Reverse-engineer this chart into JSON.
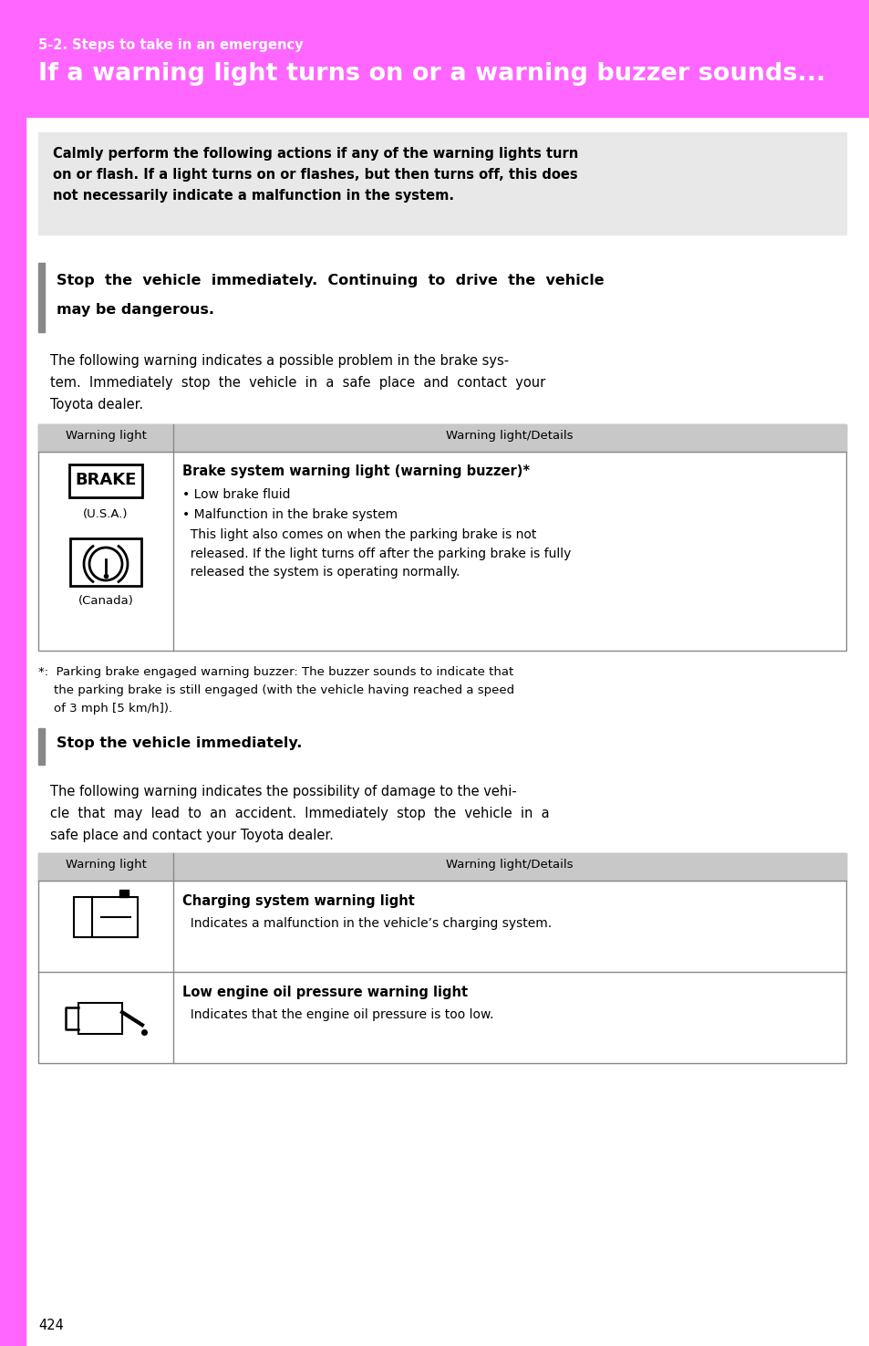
{
  "page_bg": "#ffffff",
  "pink_bg": "#ff66ff",
  "header_subtitle": "5-2. Steps to take in an emergency",
  "header_title": "If a warning light turns on or a warning buzzer sounds...",
  "header_text_color": "#ffffff",
  "gray_box_color": "#e8e8e8",
  "gray_box_text": "Calmly perform the following actions if any of the warning lights turn\non or flash. If a light turns on or flashes, but then turns off, this does\nnot necessarily indicate a malfunction in the system.",
  "stop_box1_text_line1": "Stop  the  vehicle  immediately.  Continuing  to  drive  the  vehicle",
  "stop_box1_text_line2": "may be dangerous.",
  "body_text1_line1": "The following warning indicates a possible problem in the brake sys-",
  "body_text1_line2": "tem.  Immediately  stop  the  vehicle  in  a  safe  place  and  contact  your",
  "body_text1_line3": "Toyota dealer.",
  "table1_header": [
    "Warning light",
    "Warning light/Details"
  ],
  "table1_col2_title": "Brake system warning light (warning buzzer)*",
  "table1_col2_bullet1": "• Low brake fluid",
  "table1_col2_bullet2": "• Malfunction in the brake system",
  "table1_col2_body": "  This light also comes on when the parking brake is not\n  released. If the light turns off after the parking brake is fully\n  released the system is operating normally.",
  "footnote_line1": "*:  Parking brake engaged warning buzzer: The buzzer sounds to indicate that",
  "footnote_line2": "    the parking brake is still engaged (with the vehicle having reached a speed",
  "footnote_line3": "    of 3 mph [5 km/h]).",
  "stop_box2_text": "Stop the vehicle immediately.",
  "body_text2_line1": "The following warning indicates the possibility of damage to the vehi-",
  "body_text2_line2": "cle  that  may  lead  to  an  accident.  Immediately  stop  the  vehicle  in  a",
  "body_text2_line3": "safe place and contact your Toyota dealer.",
  "table2_header": [
    "Warning light",
    "Warning light/Details"
  ],
  "table2_row1_title": "Charging system warning light",
  "table2_row1_body": "  Indicates a malfunction in the vehicle’s charging system.",
  "table2_row2_title": "Low engine oil pressure warning light",
  "table2_row2_body": "  Indicates that the engine oil pressure is too low.",
  "page_number": "424",
  "table_header_bg": "#c8c8c8",
  "table_border_color": "#888888",
  "left_bar_color": "#ff66ff",
  "gray_bar_color": "#888888"
}
